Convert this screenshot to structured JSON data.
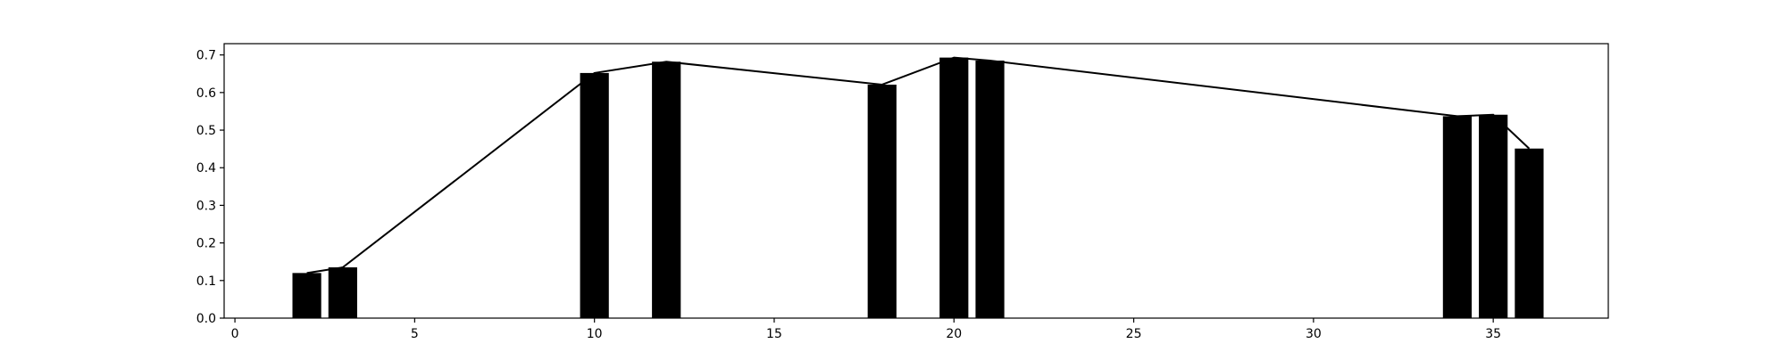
{
  "chart_data": {
    "type": "bar",
    "x": [
      2,
      3,
      10,
      12,
      18,
      20,
      21,
      34,
      35,
      36
    ],
    "values": [
      0.12,
      0.135,
      0.652,
      0.682,
      0.621,
      0.693,
      0.685,
      0.537,
      0.541,
      0.451
    ],
    "overlay_line": true,
    "title": "",
    "xlabel": "",
    "ylabel": "",
    "xlim": [
      -0.3,
      38.2
    ],
    "ylim": [
      0,
      0.73
    ],
    "xticks": [
      0,
      5,
      10,
      15,
      20,
      25,
      30,
      35
    ],
    "yticks": [
      0.0,
      0.1,
      0.2,
      0.3,
      0.4,
      0.5,
      0.6,
      0.7
    ],
    "xtick_labels": [
      "0",
      "5",
      "10",
      "15",
      "20",
      "25",
      "30",
      "35"
    ],
    "ytick_labels": [
      "0.0",
      "0.1",
      "0.2",
      "0.3",
      "0.4",
      "0.5",
      "0.6",
      "0.7"
    ],
    "grid": false,
    "legend": "none",
    "colors": {
      "bar": "#000000",
      "line": "#000000",
      "axes": "#000000"
    }
  }
}
